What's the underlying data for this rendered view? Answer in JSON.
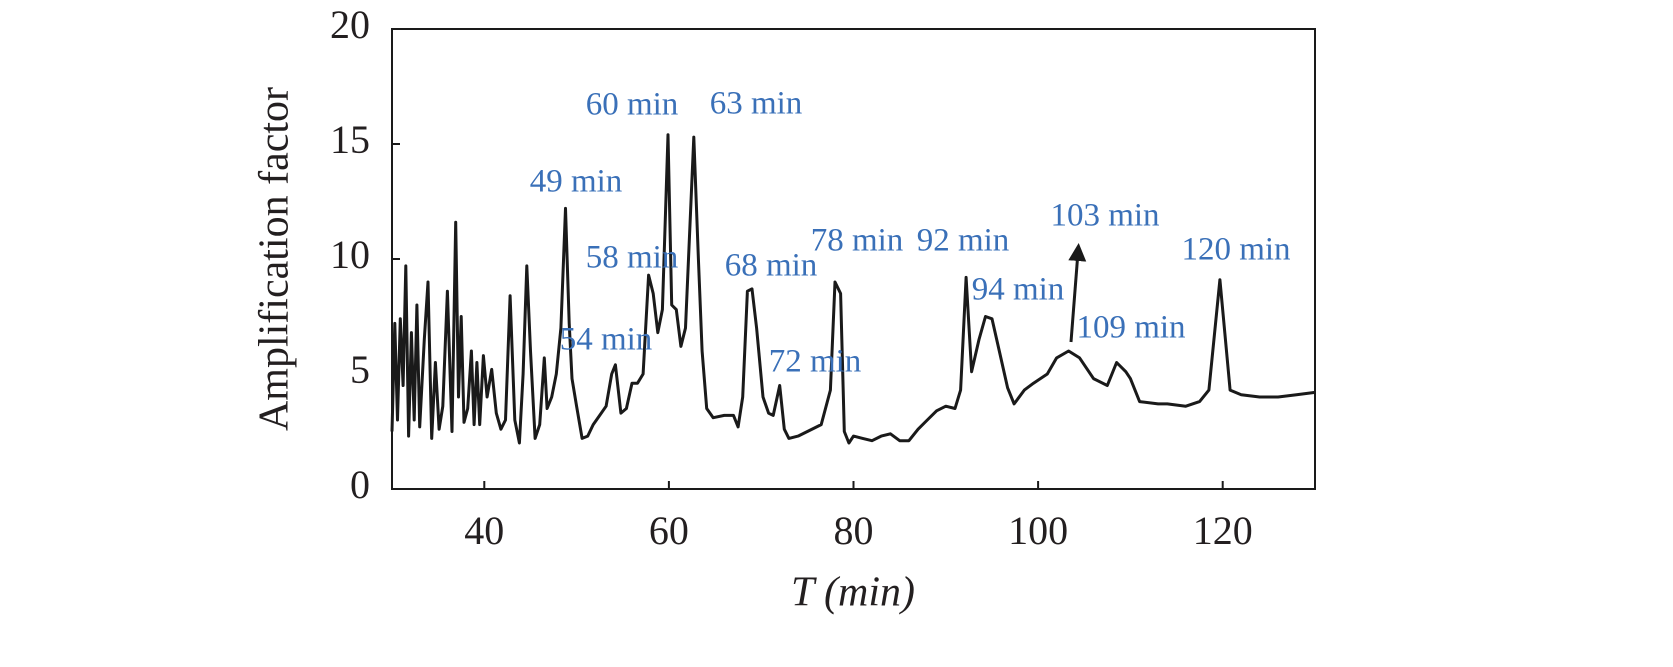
{
  "chart_data": {
    "type": "line",
    "xlabel": "T (min)",
    "ylabel": "Amplification factor",
    "xlim": [
      30,
      130
    ],
    "xticks": [
      40,
      60,
      80,
      100,
      120
    ],
    "ylim": [
      0,
      20
    ],
    "yticks": [
      0,
      5,
      10,
      15,
      20
    ],
    "grid": false,
    "color": "#1a1a1a",
    "x": [
      30,
      30.3,
      30.6,
      30.9,
      31.2,
      31.5,
      31.8,
      32.1,
      32.4,
      32.7,
      33,
      33.5,
      33.9,
      34.3,
      34.7,
      35.1,
      35.5,
      36,
      36.5,
      36.9,
      37.2,
      37.5,
      37.8,
      38.2,
      38.6,
      38.9,
      39.2,
      39.5,
      39.9,
      40.3,
      40.8,
      41.3,
      41.8,
      42.3,
      42.8,
      43.3,
      43.8,
      44.2,
      44.6,
      45,
      45.5,
      46,
      46.5,
      46.8,
      47.3,
      47.8,
      48.3,
      48.8,
      49.2,
      49.5,
      50,
      50.6,
      51.2,
      51.8,
      52.5,
      53.2,
      53.8,
      54.2,
      54.8,
      55.4,
      56,
      56.6,
      57.2,
      57.8,
      58.3,
      58.8,
      59.3,
      59.9,
      60.3,
      60.8,
      61.3,
      61.8,
      62.7,
      63.2,
      63.6,
      64.1,
      64.8,
      66,
      67,
      67.5,
      68,
      68.5,
      69,
      69.5,
      70.2,
      70.8,
      71.3,
      72,
      72.5,
      73,
      74,
      75,
      76.5,
      77.5,
      78,
      78.6,
      79,
      79.5,
      80,
      81,
      82,
      83,
      84,
      85,
      86,
      87,
      88,
      89,
      90,
      91,
      91.6,
      92.2,
      92.8,
      93.6,
      94.3,
      95,
      95.8,
      96.7,
      97.4,
      98.5,
      99.5,
      101,
      102,
      103.3,
      104.5,
      106,
      107.5,
      108.5,
      109.5,
      110,
      111,
      113,
      114,
      116,
      117.5,
      118.5,
      119.7,
      120.8,
      122,
      124,
      126,
      128,
      130
    ],
    "values": [
      2.5,
      7.2,
      3.0,
      7.4,
      4.5,
      9.7,
      2.3,
      6.8,
      3.0,
      8.0,
      2.7,
      6.5,
      9.0,
      2.2,
      5.5,
      2.6,
      3.6,
      8.6,
      2.5,
      11.6,
      4.0,
      7.5,
      2.9,
      3.5,
      6.0,
      2.8,
      5.5,
      2.8,
      5.8,
      4.0,
      5.2,
      3.3,
      2.6,
      3.0,
      8.4,
      3.0,
      2.0,
      5.0,
      9.7,
      6.0,
      2.2,
      2.8,
      5.7,
      3.5,
      4.0,
      5.0,
      7.0,
      12.2,
      7.2,
      4.8,
      3.6,
      2.2,
      2.3,
      2.8,
      3.2,
      3.6,
      5.0,
      5.4,
      3.3,
      3.5,
      4.6,
      4.6,
      5.0,
      9.3,
      8.5,
      6.8,
      7.8,
      15.4,
      8.0,
      7.8,
      6.2,
      7.0,
      15.3,
      10.0,
      6.0,
      3.5,
      3.1,
      3.2,
      3.2,
      2.7,
      4.0,
      8.6,
      8.7,
      7.0,
      4.0,
      3.3,
      3.2,
      4.5,
      2.6,
      2.2,
      2.3,
      2.5,
      2.8,
      4.3,
      9.0,
      8.5,
      2.5,
      2.0,
      2.3,
      2.2,
      2.1,
      2.3,
      2.4,
      2.1,
      2.1,
      2.6,
      3.0,
      3.4,
      3.6,
      3.5,
      4.3,
      9.2,
      5.1,
      6.5,
      7.5,
      7.4,
      6.0,
      4.4,
      3.7,
      4.3,
      4.6,
      5.0,
      5.7,
      6.0,
      5.7,
      4.8,
      4.5,
      5.5,
      5.1,
      4.8,
      3.8,
      3.7,
      3.7,
      3.6,
      3.8,
      4.3,
      9.1,
      4.3,
      4.1,
      4.0,
      4.0,
      4.1,
      4.2
    ],
    "annotations": [
      "60 min",
      "63 min",
      "49 min",
      "58 min",
      "54 min",
      "68 min",
      "72 min",
      "78 min",
      "92 min",
      "94 min",
      "103 min",
      "109 min",
      "120 min"
    ]
  }
}
